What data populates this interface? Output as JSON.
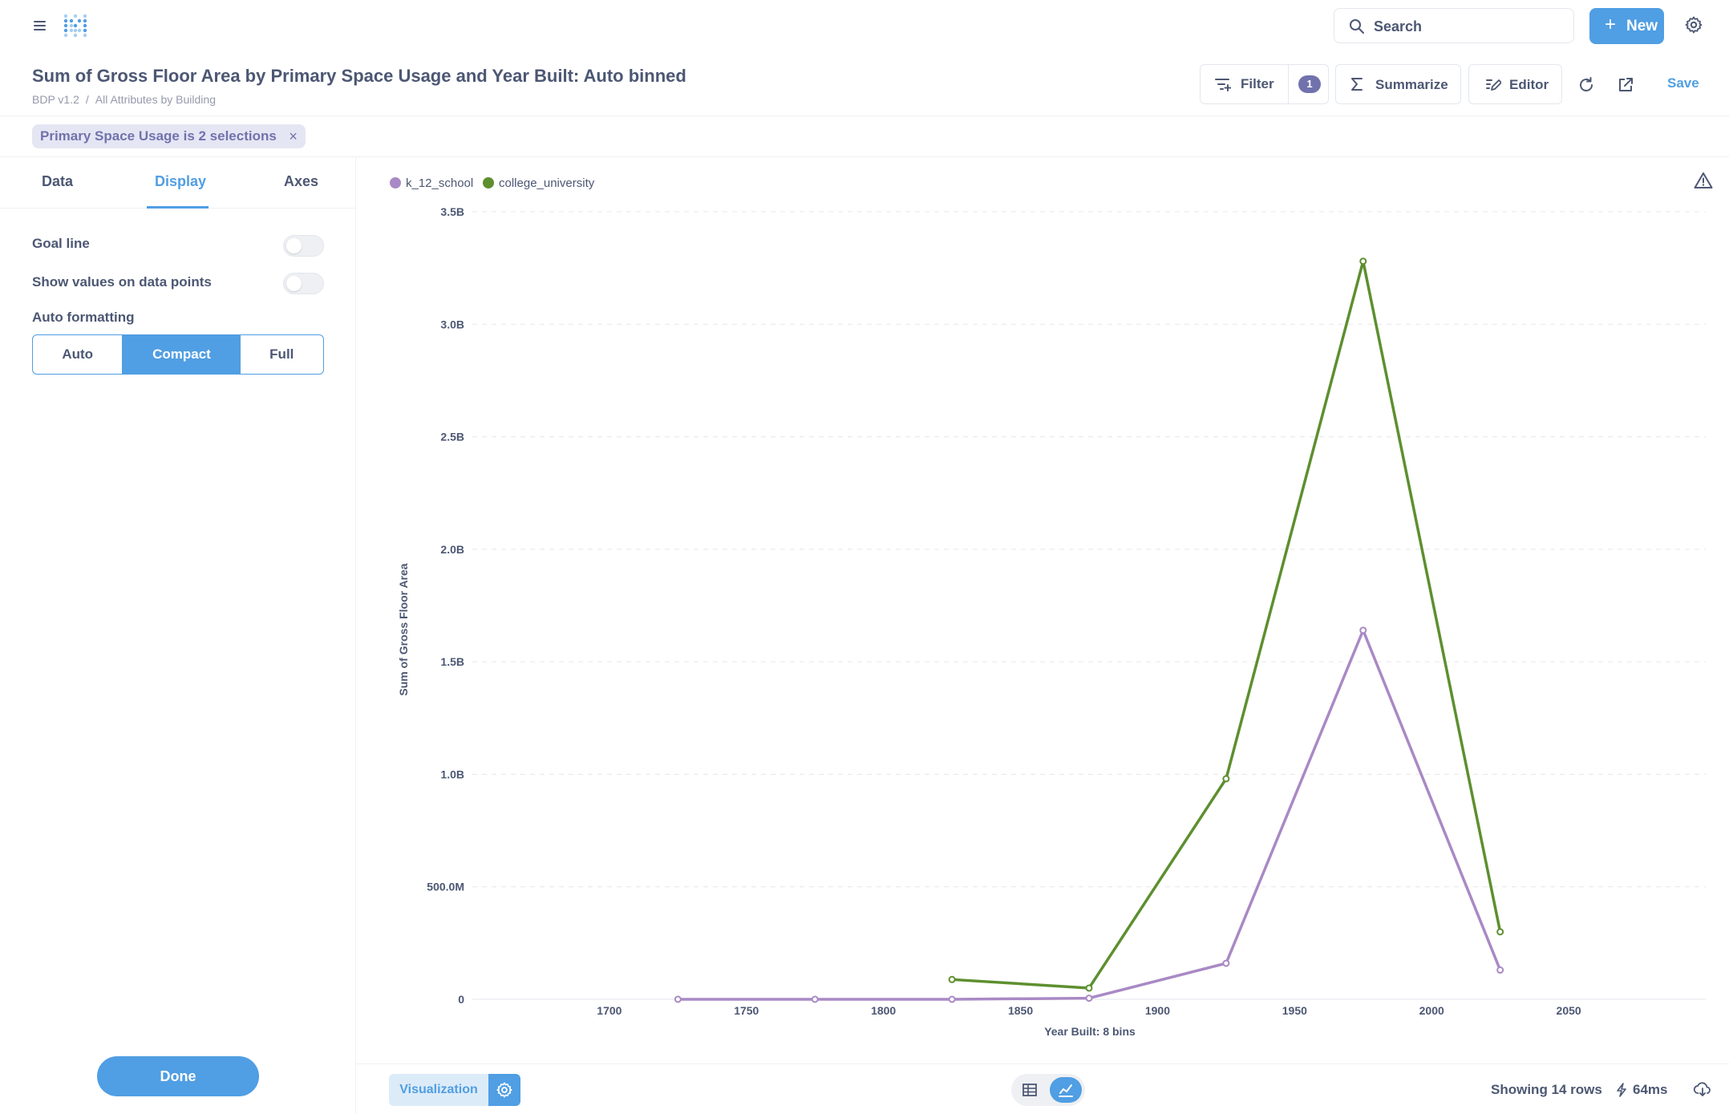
{
  "topbar": {
    "search_label": "Search",
    "new_label": "New",
    "new_plus": "+"
  },
  "question": {
    "title": "Sum of Gross Floor Area by Primary Space Usage and Year Built: Auto binned",
    "breadcrumb": [
      "BDP v1.2",
      "/",
      "All Attributes by Building"
    ]
  },
  "toolbar": {
    "filter_label": "Filter",
    "filter_count": "1",
    "summarize_label": "Summarize",
    "editor_label": "Editor",
    "save_label": "Save"
  },
  "filter_pill": {
    "label": "Primary Space Usage is 2 selections",
    "remove": "×"
  },
  "sidebar": {
    "tabs": [
      "Data",
      "Display",
      "Axes"
    ],
    "active_tab": "Display",
    "goal_line_label": "Goal line",
    "goal_line_on": false,
    "show_values_label": "Show values on data points",
    "show_values_on": false,
    "auto_formatting_label": "Auto formatting",
    "formatting_options": [
      "Auto",
      "Compact",
      "Full"
    ],
    "formatting_selected": "Compact",
    "done_label": "Done"
  },
  "chart_data": {
    "type": "line",
    "title": "",
    "xlabel": "Year Built: 8 bins",
    "ylabel": "Sum of Gross Floor Area",
    "xlim": [
      1650,
      2100
    ],
    "ylim": [
      0,
      3500000000
    ],
    "x_ticks": [
      1700,
      1750,
      1800,
      1850,
      1900,
      1950,
      2000,
      2050
    ],
    "y_ticks": [
      {
        "value": 0,
        "label": "0"
      },
      {
        "value": 500000000,
        "label": "500.0M"
      },
      {
        "value": 1000000000,
        "label": "1.0B"
      },
      {
        "value": 1500000000,
        "label": "1.5B"
      },
      {
        "value": 2000000000,
        "label": "2.0B"
      },
      {
        "value": 2500000000,
        "label": "2.5B"
      },
      {
        "value": 3000000000,
        "label": "3.0B"
      },
      {
        "value": 3500000000,
        "label": "3.5B"
      }
    ],
    "grid": true,
    "legend_position": "top-left",
    "series": [
      {
        "name": "k_12_school",
        "color": "#a989c5",
        "x": [
          1725,
          1775,
          1825,
          1875,
          1925,
          1975,
          2025
        ],
        "y": [
          0,
          0,
          0,
          5000000,
          160000000,
          1640000000,
          130000000
        ]
      },
      {
        "name": "college_university",
        "color": "#5d8f2f",
        "x": [
          1825,
          1875,
          1925,
          1975,
          2025
        ],
        "y": [
          88000000,
          50000000,
          980000000,
          3280000000,
          300000000
        ]
      }
    ]
  },
  "footer": {
    "visualization_label": "Visualization",
    "rows_label": "Showing 14 rows",
    "timing_label": "64ms"
  }
}
